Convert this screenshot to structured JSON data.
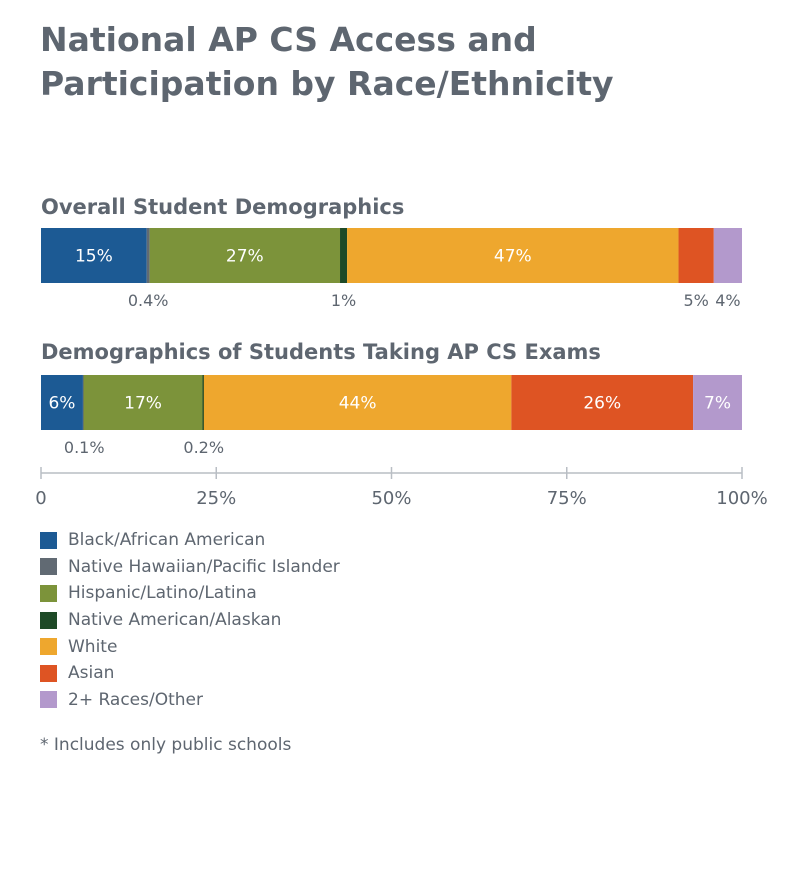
{
  "title": "National AP CS Access and Participation by Race/Ethnicity",
  "footnote": "* Includes only public schools",
  "colors": {
    "Black/African American": "#1c5a94",
    "Native Hawaiian/Pacific Islander": "#616a73",
    "Hispanic/Latino/Latina": "#7c933a",
    "Native American/Alaskan": "#1e4a27",
    "White": "#eea72e",
    "Asian": "#de5423",
    "2+ Races/Other": "#b399cc"
  },
  "chart_data": {
    "type": "bar",
    "orientation": "horizontal",
    "stacked": true,
    "unit": "%",
    "xlim": [
      0,
      100
    ],
    "x_ticks": [
      "0",
      "25%",
      "50%",
      "75%",
      "100%"
    ],
    "legend": [
      "Black/African American",
      "Native Hawaiian/Pacific Islander",
      "Hispanic/Latino/Latina",
      "Native American/Alaskan",
      "White",
      "Asian",
      "2+ Races/Other"
    ],
    "legend_position": "bottom-left",
    "bars": [
      {
        "title": "Overall Student Demographics",
        "segments": [
          {
            "category": "Black/African American",
            "value": 15,
            "label": "15%",
            "label_position": "inside"
          },
          {
            "category": "Native Hawaiian/Pacific Islander",
            "value": 0.4,
            "label": "0.4%",
            "label_position": "below"
          },
          {
            "category": "Hispanic/Latino/Latina",
            "value": 27,
            "label": "27%",
            "label_position": "inside"
          },
          {
            "category": "Native American/Alaskan",
            "value": 1,
            "label": "1%",
            "label_position": "below"
          },
          {
            "category": "White",
            "value": 47,
            "label": "47%",
            "label_position": "inside"
          },
          {
            "category": "Asian",
            "value": 5,
            "label": "5%",
            "label_position": "below"
          },
          {
            "category": "2+ Races/Other",
            "value": 4,
            "label": "4%",
            "label_position": "below"
          }
        ]
      },
      {
        "title": "Demographics of Students Taking AP CS Exams",
        "segments": [
          {
            "category": "Black/African American",
            "value": 6,
            "label": "6%",
            "label_position": "inside"
          },
          {
            "category": "Native Hawaiian/Pacific Islander",
            "value": 0.1,
            "label": "0.1%",
            "label_position": "below"
          },
          {
            "category": "Hispanic/Latino/Latina",
            "value": 17,
            "label": "17%",
            "label_position": "inside"
          },
          {
            "category": "Native American/Alaskan",
            "value": 0.2,
            "label": "0.2%",
            "label_position": "below"
          },
          {
            "category": "White",
            "value": 44,
            "label": "44%",
            "label_position": "inside"
          },
          {
            "category": "Asian",
            "value": 26,
            "label": "26%",
            "label_position": "inside"
          },
          {
            "category": "2+ Races/Other",
            "value": 7,
            "label": "7%",
            "label_position": "inside"
          }
        ]
      }
    ]
  }
}
